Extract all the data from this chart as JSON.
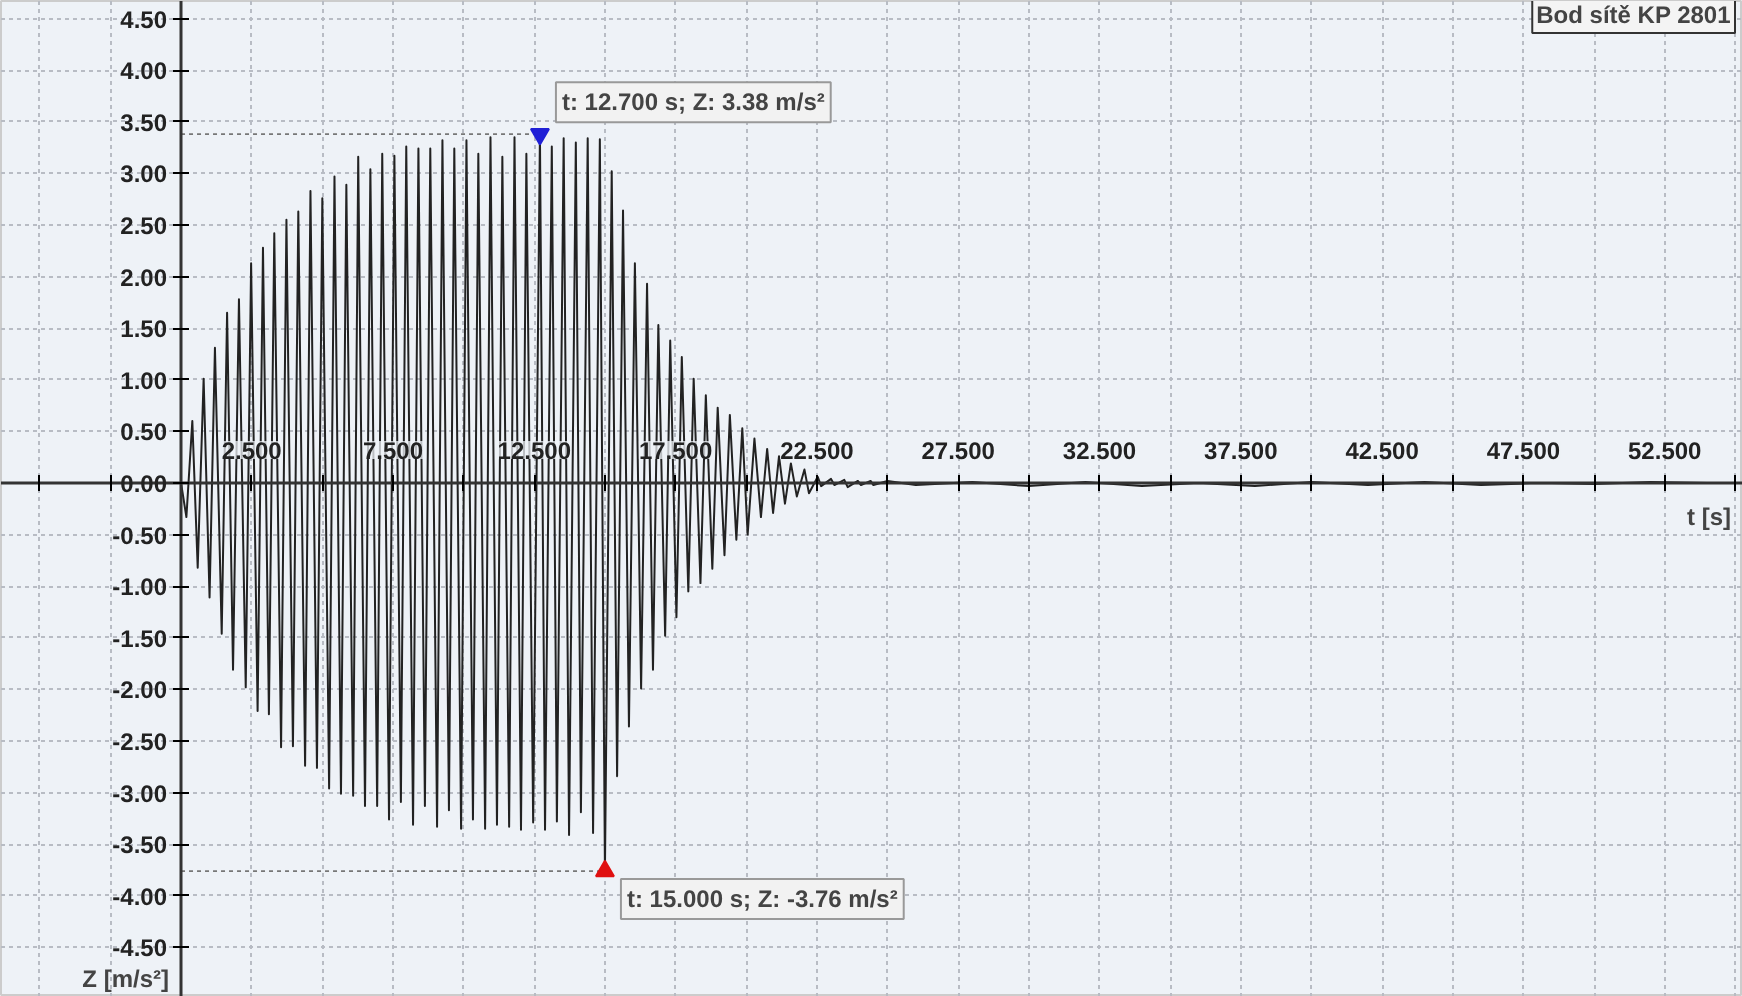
{
  "chart_data": {
    "type": "line",
    "title": "Bod sítě KP 2801",
    "xlabel": "t [s]",
    "ylabel": "Z [m/s²]",
    "series": [
      {
        "color": "#222222",
        "x": [
          0,
          0.19,
          0.4,
          0.59,
          0.8,
          1.01,
          1.2,
          1.44,
          1.63,
          1.84,
          2.05,
          2.29,
          2.48,
          2.71,
          2.9,
          3.11,
          3.3,
          3.54,
          3.73,
          3.96,
          4.15,
          4.39,
          4.58,
          4.81,
          5.0,
          5.24,
          5.43,
          5.66,
          5.85,
          6.09,
          6.27,
          6.51,
          6.7,
          6.94,
          7.12,
          7.36,
          7.55,
          7.78,
          7.97,
          8.21,
          8.4,
          8.63,
          8.82,
          9.06,
          9.25,
          9.48,
          9.67,
          9.91,
          10.1,
          10.33,
          10.52,
          10.76,
          10.95,
          11.18,
          11.37,
          11.61,
          11.8,
          12.03,
          12.22,
          12.46,
          12.7,
          12.88,
          13.12,
          13.3,
          13.54,
          13.73,
          13.97,
          14.15,
          14.39,
          14.58,
          14.82,
          15.0,
          15.24,
          15.43,
          15.64,
          15.85,
          16.06,
          16.28,
          16.49,
          16.7,
          16.89,
          17.13,
          17.31,
          17.53,
          17.72,
          17.95,
          18.14,
          18.38,
          18.57,
          18.8,
          18.99,
          19.23,
          19.42,
          19.65,
          19.86,
          20.05,
          20.29,
          20.52,
          20.74,
          20.95,
          21.16,
          21.37,
          21.58,
          21.79,
          22.06,
          22.22,
          22.53,
          22.65,
          23.0,
          23.12,
          23.47,
          23.59,
          23.95,
          24.06,
          24.4,
          24.5,
          25,
          26,
          28,
          30,
          32,
          34,
          36,
          38,
          40,
          42,
          44,
          46,
          48,
          50,
          52,
          54,
          55.2
        ],
        "values": [
          0,
          -0.33,
          0.6,
          -0.82,
          1.01,
          -1.11,
          1.31,
          -1.46,
          1.65,
          -1.81,
          1.78,
          -1.98,
          2.13,
          -2.21,
          2.28,
          -2.24,
          2.42,
          -2.56,
          2.55,
          -2.55,
          2.63,
          -2.74,
          2.83,
          -2.76,
          2.76,
          -2.96,
          2.97,
          -3.01,
          2.89,
          -3.03,
          3.16,
          -3.13,
          3.04,
          -3.13,
          3.19,
          -3.26,
          3.17,
          -3.09,
          3.26,
          -3.31,
          3.24,
          -3.13,
          3.24,
          -3.33,
          3.32,
          -3.17,
          3.24,
          -3.35,
          3.32,
          -3.26,
          3.19,
          -3.35,
          3.35,
          -3.31,
          3.16,
          -3.33,
          3.35,
          -3.36,
          3.19,
          -3.29,
          3.38,
          -3.36,
          3.26,
          -3.28,
          3.34,
          -3.41,
          3.3,
          -3.19,
          3.34,
          -3.39,
          3.33,
          -3.76,
          3.02,
          -2.84,
          2.64,
          -2.36,
          2.13,
          -1.99,
          1.93,
          -1.81,
          1.53,
          -1.48,
          1.38,
          -1.3,
          1.22,
          -1.05,
          1.01,
          -0.97,
          0.85,
          -0.83,
          0.73,
          -0.7,
          0.66,
          -0.55,
          0.53,
          -0.5,
          0.43,
          -0.33,
          0.33,
          -0.29,
          0.26,
          -0.2,
          0.19,
          -0.13,
          0.13,
          -0.1,
          0.06,
          -0.03,
          0.04,
          -0.02,
          0.03,
          -0.04,
          0.02,
          -0.02,
          0.02,
          -0.02,
          0.02,
          -0.02,
          0.01,
          -0.03,
          0.01,
          -0.03,
          0,
          -0.03,
          0.01,
          -0.02,
          0.01,
          -0.02,
          0,
          -0.01,
          0.01,
          0,
          0
        ]
      }
    ],
    "xlim": [
      -6.37,
      55.27
    ],
    "ylim": [
      -4.98,
      4.67
    ],
    "xticks": [
      {
        "value": -5,
        "label": null
      },
      {
        "value": -2.5,
        "label": null
      },
      {
        "value": 2.5,
        "label": "2.500"
      },
      {
        "value": 5,
        "label": null
      },
      {
        "value": 7.5,
        "label": "7.500"
      },
      {
        "value": 10,
        "label": null
      },
      {
        "value": 12.5,
        "label": "12.500"
      },
      {
        "value": 15,
        "label": null
      },
      {
        "value": 17.5,
        "label": "17.500"
      },
      {
        "value": 20,
        "label": null
      },
      {
        "value": 22.5,
        "label": "22.500"
      },
      {
        "value": 25,
        "label": null
      },
      {
        "value": 27.5,
        "label": "27.500"
      },
      {
        "value": 30,
        "label": null
      },
      {
        "value": 32.5,
        "label": "32.500"
      },
      {
        "value": 35,
        "label": null
      },
      {
        "value": 37.5,
        "label": "37.500"
      },
      {
        "value": 40,
        "label": null
      },
      {
        "value": 42.5,
        "label": "42.500"
      },
      {
        "value": 45,
        "label": null
      },
      {
        "value": 47.5,
        "label": "47.500"
      },
      {
        "value": 50,
        "label": null
      },
      {
        "value": 52.5,
        "label": "52.500"
      },
      {
        "value": 55,
        "label": null
      }
    ],
    "yticks": [
      {
        "value": -4.5,
        "label": "-4.50"
      },
      {
        "value": -4,
        "label": "-4.00"
      },
      {
        "value": -3.5,
        "label": "-3.50"
      },
      {
        "value": -3,
        "label": "-3.00"
      },
      {
        "value": -2.5,
        "label": "-2.50"
      },
      {
        "value": -2,
        "label": "-2.00"
      },
      {
        "value": -1.5,
        "label": "-1.50"
      },
      {
        "value": -1,
        "label": "-1.00"
      },
      {
        "value": -0.5,
        "label": "-0.50"
      },
      {
        "value": 0,
        "label": "0.00"
      },
      {
        "value": 0.5,
        "label": "0.50"
      },
      {
        "value": 1,
        "label": "1.00"
      },
      {
        "value": 1.5,
        "label": "1.50"
      },
      {
        "value": 2,
        "label": "2.00"
      },
      {
        "value": 2.5,
        "label": "2.50"
      },
      {
        "value": 3,
        "label": "3.00"
      },
      {
        "value": 3.5,
        "label": "3.50"
      },
      {
        "value": 4,
        "label": "4.00"
      },
      {
        "value": 4.5,
        "label": "4.50"
      }
    ],
    "grid": true,
    "annotations": [
      {
        "text": "t: 12.700 s; Z: 3.38 m/s²",
        "x": 12.7,
        "y": 3.38
      },
      {
        "text": "t: 15.000 s; Z: -3.76 m/s²",
        "x": 15.0,
        "y": -3.76
      }
    ]
  }
}
